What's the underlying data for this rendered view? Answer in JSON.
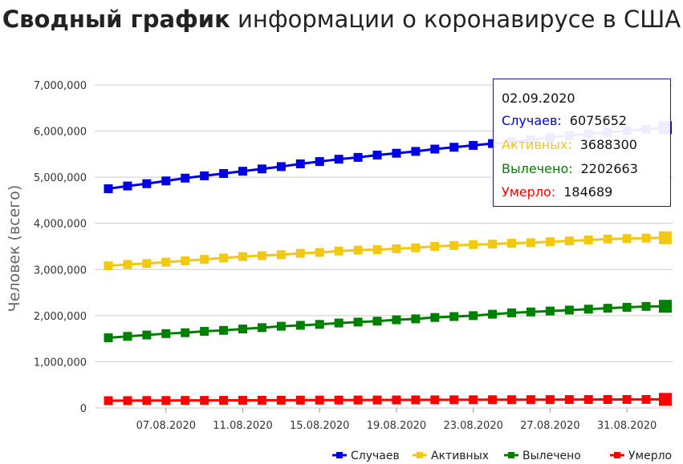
{
  "title_bold": "Сводный график",
  "title_rest": "информации о коронавирусе в США",
  "chart_data": {
    "type": "line",
    "title": "Сводный график информации о коронавирусе в США",
    "ylabel": "Человек (всего)",
    "ylim": [
      0,
      7000000
    ],
    "yticks": [
      "0",
      "1,000,000",
      "2,000,000",
      "3,000,000",
      "4,000,000",
      "5,000,000",
      "6,000,000",
      "7,000,000"
    ],
    "ytick_values": [
      0,
      1000000,
      2000000,
      3000000,
      4000000,
      5000000,
      6000000,
      7000000
    ],
    "x": [
      "04.08.2020",
      "05.08.2020",
      "06.08.2020",
      "07.08.2020",
      "08.08.2020",
      "09.08.2020",
      "10.08.2020",
      "11.08.2020",
      "12.08.2020",
      "13.08.2020",
      "14.08.2020",
      "15.08.2020",
      "16.08.2020",
      "17.08.2020",
      "18.08.2020",
      "19.08.2020",
      "20.08.2020",
      "21.08.2020",
      "22.08.2020",
      "23.08.2020",
      "24.08.2020",
      "25.08.2020",
      "26.08.2020",
      "27.08.2020",
      "28.08.2020",
      "29.08.2020",
      "30.08.2020",
      "31.08.2020",
      "01.09.2020",
      "02.09.2020"
    ],
    "xtick_labels": [
      "07.08.2020",
      "11.08.2020",
      "15.08.2020",
      "19.08.2020",
      "23.08.2020",
      "27.08.2020",
      "31.08.2020"
    ],
    "grid": true,
    "legend_position": "bottom-right",
    "series": [
      {
        "name": "Случаев",
        "color": "#0000e6",
        "values": [
          4750000,
          4810000,
          4860000,
          4920000,
          4980000,
          5030000,
          5080000,
          5130000,
          5180000,
          5230000,
          5290000,
          5340000,
          5390000,
          5430000,
          5480000,
          5520000,
          5560000,
          5610000,
          5650000,
          5690000,
          5730000,
          5770000,
          5810000,
          5860000,
          5900000,
          5940000,
          5970000,
          6010000,
          6040000,
          6075652
        ]
      },
      {
        "name": "Активных",
        "color": "#f2c811",
        "values": [
          3080000,
          3110000,
          3130000,
          3160000,
          3190000,
          3220000,
          3250000,
          3280000,
          3300000,
          3320000,
          3350000,
          3370000,
          3400000,
          3420000,
          3430000,
          3450000,
          3470000,
          3500000,
          3520000,
          3540000,
          3550000,
          3570000,
          3580000,
          3600000,
          3620000,
          3640000,
          3660000,
          3670000,
          3680000,
          3688300
        ]
      },
      {
        "name": "Вылечено",
        "color": "#008000",
        "values": [
          1520000,
          1550000,
          1580000,
          1610000,
          1630000,
          1660000,
          1680000,
          1710000,
          1740000,
          1770000,
          1790000,
          1810000,
          1840000,
          1860000,
          1880000,
          1910000,
          1930000,
          1960000,
          1980000,
          2000000,
          2030000,
          2060000,
          2080000,
          2100000,
          2120000,
          2140000,
          2160000,
          2180000,
          2200000,
          2202663
        ]
      },
      {
        "name": "Умерло",
        "color": "#ff0000",
        "values": [
          157000,
          158000,
          160000,
          161000,
          162000,
          163000,
          164000,
          165000,
          166000,
          167000,
          168000,
          169000,
          170000,
          171000,
          172000,
          173000,
          174000,
          175000,
          176000,
          177000,
          177500,
          178000,
          179000,
          180000,
          181000,
          182000,
          182500,
          183000,
          184000,
          184689
        ]
      }
    ]
  },
  "tooltip": {
    "date": "02.09.2020",
    "rows": [
      {
        "label": "Случаев:",
        "value": "6075652",
        "color": "#0000e6"
      },
      {
        "label": "Активных:",
        "value": "3688300",
        "color": "#f2c811"
      },
      {
        "label": "Вылечено:",
        "value": "2202663",
        "color": "#008000"
      },
      {
        "label": "Умерло:",
        "value": "184689",
        "color": "#ff0000"
      }
    ]
  }
}
